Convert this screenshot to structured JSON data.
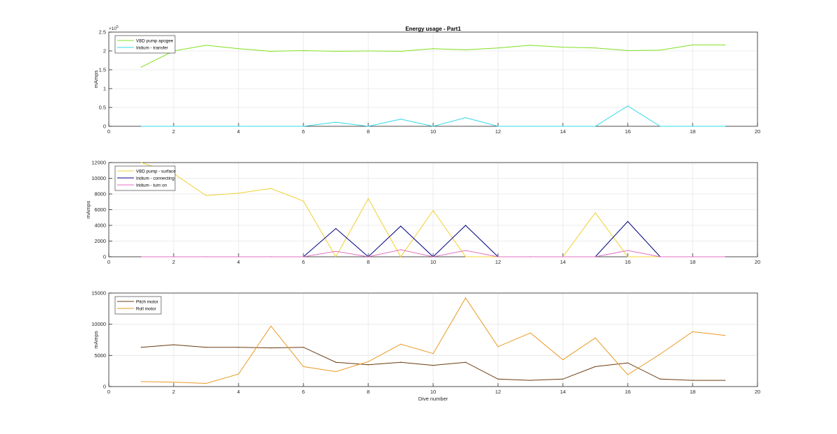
{
  "figure": {
    "title": "Energy usage - Part1"
  },
  "colors": {
    "axis": "#262626",
    "grid": "#e6e6e6",
    "VBD pump apogee": "#80e020",
    "Iridium - transfer": "#30d8e8",
    "VBD pump - surface": "#f0d030",
    "Iridium - connecting": "#000080",
    "Iridium - turn on": "#e070c0",
    "Pitch motor": "#6b3a10",
    "Roll motor": "#e89a20"
  },
  "chart_data": [
    {
      "type": "line",
      "title": "Energy usage - Part1",
      "xlabel": "",
      "ylabel": "mAmps",
      "xlim": [
        0,
        20
      ],
      "ylim": [
        0,
        250000
      ],
      "exponent_label": "×10^5",
      "x_ticks": [
        "0",
        "2",
        "4",
        "6",
        "8",
        "10",
        "12",
        "14",
        "16",
        "18",
        "20"
      ],
      "y_ticks": [
        {
          "v": 0,
          "label": "0"
        },
        {
          "v": 50000,
          "label": "0.5"
        },
        {
          "v": 100000,
          "label": "1"
        },
        {
          "v": 150000,
          "label": "1.5"
        },
        {
          "v": 200000,
          "label": "2"
        },
        {
          "v": 250000,
          "label": "2.5"
        }
      ],
      "grid": true,
      "legend": "top-left",
      "x": [
        1,
        2,
        3,
        4,
        5,
        6,
        7,
        8,
        9,
        10,
        11,
        12,
        13,
        14,
        15,
        16,
        17,
        18,
        19
      ],
      "series": [
        {
          "name": "VBD pump apogee",
          "values": [
            157000,
            200000,
            215000,
            206000,
            199000,
            201000,
            199000,
            200000,
            199000,
            206000,
            203000,
            208000,
            215000,
            210000,
            208000,
            201000,
            202000,
            216000,
            216000
          ]
        },
        {
          "name": "Iridium - transfer",
          "values": [
            0,
            0,
            0,
            0,
            0,
            0,
            11000,
            0,
            19000,
            0,
            23000,
            0,
            0,
            0,
            0,
            54000,
            0,
            0,
            0
          ]
        }
      ]
    },
    {
      "type": "line",
      "title": "",
      "xlabel": "",
      "ylabel": "mAmps",
      "xlim": [
        0,
        20
      ],
      "ylim": [
        0,
        12000
      ],
      "x_ticks": [
        "0",
        "2",
        "4",
        "6",
        "8",
        "10",
        "12",
        "14",
        "16",
        "18",
        "20"
      ],
      "y_ticks": [
        {
          "v": 0,
          "label": "0"
        },
        {
          "v": 2000,
          "label": "2000"
        },
        {
          "v": 4000,
          "label": "4000"
        },
        {
          "v": 6000,
          "label": "6000"
        },
        {
          "v": 8000,
          "label": "8000"
        },
        {
          "v": 10000,
          "label": "10000"
        },
        {
          "v": 12000,
          "label": "12000"
        }
      ],
      "grid": true,
      "legend": "top-left",
      "x": [
        1,
        2,
        3,
        4,
        5,
        6,
        7,
        8,
        9,
        10,
        11,
        12,
        13,
        14,
        15,
        16,
        17,
        18,
        19
      ],
      "series": [
        {
          "name": "VBD pump - surface",
          "values": [
            12000,
            10600,
            7800,
            8100,
            8700,
            7100,
            0,
            7400,
            0,
            5900,
            0,
            0,
            0,
            0,
            5600,
            0,
            0,
            0,
            0
          ]
        },
        {
          "name": "Iridium - connecting",
          "values": [
            0,
            0,
            0,
            0,
            0,
            0,
            3600,
            0,
            3900,
            0,
            4000,
            0,
            0,
            0,
            0,
            4500,
            0,
            0,
            0
          ]
        },
        {
          "name": "Iridium - turn on",
          "values": [
            0,
            0,
            0,
            0,
            0,
            0,
            700,
            0,
            900,
            0,
            800,
            0,
            0,
            0,
            0,
            800,
            0,
            0,
            0
          ]
        }
      ]
    },
    {
      "type": "line",
      "title": "",
      "xlabel": "Dive number",
      "ylabel": "mAmps",
      "xlim": [
        0,
        20
      ],
      "ylim": [
        0,
        15000
      ],
      "x_ticks": [
        "0",
        "2",
        "4",
        "6",
        "8",
        "10",
        "12",
        "14",
        "16",
        "18",
        "20"
      ],
      "y_ticks": [
        {
          "v": 0,
          "label": "0"
        },
        {
          "v": 5000,
          "label": "5000"
        },
        {
          "v": 10000,
          "label": "10000"
        },
        {
          "v": 15000,
          "label": "15000"
        }
      ],
      "grid": true,
      "legend": "top-left",
      "x": [
        1,
        2,
        3,
        4,
        5,
        6,
        7,
        8,
        9,
        10,
        11,
        12,
        13,
        14,
        15,
        16,
        17,
        18,
        19
      ],
      "series": [
        {
          "name": "Pitch motor",
          "values": [
            6300,
            6700,
            6300,
            6300,
            6200,
            6300,
            3900,
            3500,
            3900,
            3400,
            3900,
            1200,
            1000,
            1200,
            3200,
            3800,
            1200,
            1000,
            1000
          ]
        },
        {
          "name": "Roll motor",
          "values": [
            800,
            700,
            500,
            2000,
            9700,
            3200,
            2400,
            4000,
            6800,
            5300,
            14200,
            6400,
            8600,
            4300,
            7800,
            1900,
            5200,
            8800,
            8200
          ]
        }
      ]
    }
  ]
}
